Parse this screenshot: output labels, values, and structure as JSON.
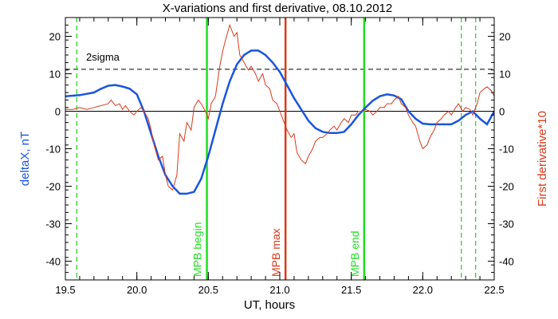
{
  "chart_data": {
    "type": "line",
    "title": "X-variations and first derivative, 08.10.2012",
    "xlabel": "UT, hours",
    "ylabel_left": "deltaX, nT",
    "ylabel_right": "First derivative*10",
    "xlim": [
      19.5,
      22.5
    ],
    "ylim": [
      -45,
      25
    ],
    "x_ticks": [
      19.5,
      20.0,
      20.5,
      21.0,
      21.5,
      22.0,
      22.5
    ],
    "x_tick_labels": [
      "19.5",
      "20.0",
      "20.5",
      "21.0",
      "21.5",
      "22.0",
      "22.5"
    ],
    "y_ticks": [
      20,
      10,
      0,
      -10,
      -20,
      -30,
      -40
    ],
    "y_tick_labels": [
      "20",
      "10",
      "0",
      "-10",
      "-20",
      "-30",
      "-40"
    ],
    "series": [
      {
        "name": "deltaX, nT",
        "color": "#1a55e0",
        "x": [
          19.5,
          19.6,
          19.7,
          19.75,
          19.8,
          19.85,
          19.9,
          19.95,
          20.0,
          20.05,
          20.1,
          20.15,
          20.2,
          20.25,
          20.3,
          20.35,
          20.4,
          20.45,
          20.5,
          20.55,
          20.6,
          20.65,
          20.7,
          20.75,
          20.8,
          20.85,
          20.9,
          20.95,
          21.0,
          21.05,
          21.1,
          21.15,
          21.2,
          21.25,
          21.3,
          21.35,
          21.4,
          21.45,
          21.5,
          21.55,
          21.6,
          21.65,
          21.7,
          21.75,
          21.8,
          21.85,
          21.9,
          21.95,
          22.0,
          22.05,
          22.1,
          22.15,
          22.2,
          22.25,
          22.3,
          22.35,
          22.4,
          22.45,
          22.5
        ],
        "values": [
          4,
          4.3,
          5,
          6,
          6.8,
          7,
          6.6,
          6,
          4.5,
          0,
          -6,
          -12,
          -17,
          -20,
          -22,
          -22,
          -21.5,
          -18,
          -12,
          -5,
          2,
          8,
          12.5,
          15,
          16.2,
          16.2,
          15,
          13,
          10.5,
          7,
          3.5,
          0.5,
          -2.5,
          -4.5,
          -5.5,
          -5.8,
          -5.8,
          -5.5,
          -3.5,
          -1,
          1,
          2.8,
          4,
          4.5,
          4.2,
          3.2,
          0,
          -2,
          -3.3,
          -3.5,
          -3.5,
          -3.5,
          -3.5,
          -2.5,
          -1,
          0,
          -2,
          -3.5,
          0
        ]
      },
      {
        "name": "First derivative*10",
        "color": "#d93a1a",
        "x": [
          19.5,
          19.55,
          19.6,
          19.65,
          19.7,
          19.75,
          19.8,
          19.82,
          19.85,
          19.88,
          19.9,
          19.92,
          19.95,
          19.98,
          20.0,
          20.03,
          20.05,
          20.08,
          20.1,
          20.12,
          20.15,
          20.18,
          20.2,
          20.22,
          20.25,
          20.28,
          20.3,
          20.33,
          20.35,
          20.38,
          20.4,
          20.43,
          20.45,
          20.48,
          20.5,
          20.52,
          20.55,
          20.58,
          20.6,
          20.62,
          20.65,
          20.68,
          20.7,
          20.72,
          20.75,
          20.78,
          20.8,
          20.83,
          20.85,
          20.88,
          20.9,
          20.93,
          20.95,
          20.98,
          21.0,
          21.03,
          21.05,
          21.08,
          21.1,
          21.12,
          21.15,
          21.18,
          21.2,
          21.23,
          21.25,
          21.28,
          21.3,
          21.33,
          21.35,
          21.38,
          21.4,
          21.43,
          21.45,
          21.48,
          21.5,
          21.53,
          21.55,
          21.58,
          21.6,
          21.63,
          21.65,
          21.68,
          21.7,
          21.73,
          21.75,
          21.78,
          21.8,
          21.83,
          21.85,
          21.88,
          21.9,
          21.93,
          21.95,
          21.98,
          22.0,
          22.03,
          22.05,
          22.08,
          22.1,
          22.13,
          22.15,
          22.18,
          22.2,
          22.23,
          22.25,
          22.28,
          22.3,
          22.33,
          22.35,
          22.38,
          22.4,
          22.43,
          22.45,
          22.48,
          22.5
        ],
        "values": [
          0.5,
          0.5,
          1,
          0.5,
          1,
          1.5,
          2,
          3,
          1.5,
          2,
          0.5,
          1.5,
          0,
          -1,
          0,
          1,
          0,
          -2,
          -5,
          -9,
          -13,
          -12,
          -17,
          -20,
          -21,
          -17,
          -6,
          -8,
          -3,
          -5,
          1,
          3,
          2,
          0,
          -2,
          2,
          4,
          12,
          16,
          19,
          23,
          20,
          21,
          15,
          13,
          11,
          12,
          10,
          8,
          10,
          7,
          6,
          3,
          2,
          0,
          -3,
          -5,
          -7,
          -6,
          -11,
          -13,
          -14,
          -12,
          -10,
          -8,
          -7,
          -7,
          -6,
          -5,
          -4,
          -5,
          -3,
          -2,
          -3,
          -1,
          -1,
          0,
          0,
          0.5,
          0,
          -1,
          0,
          1,
          1,
          2,
          2,
          3,
          4,
          2,
          1,
          -1,
          -3,
          -4,
          -8,
          -10,
          -9,
          -7,
          -5,
          -3,
          -2,
          -1,
          0,
          -1,
          1,
          2,
          0,
          1,
          0.5,
          -1,
          2,
          5,
          6,
          6.5,
          5.5,
          4
        ],
        "width": 1
      }
    ],
    "reference_lines": [
      {
        "name": "zero-line",
        "y": 0,
        "color": "#000000",
        "style": "solid"
      },
      {
        "name": "2sigma-line",
        "y": 11.2,
        "color": "#000000",
        "style": "dashed",
        "label": "2sigma"
      }
    ],
    "vertical_lines": [
      {
        "x": 19.58,
        "color": "#22cc22",
        "style": "dashed",
        "label": ""
      },
      {
        "x": 20.49,
        "color": "#22dd22",
        "style": "solid",
        "label": "MPB begin"
      },
      {
        "x": 21.04,
        "color": "#d93a1a",
        "style": "solid",
        "label": "MPB max"
      },
      {
        "x": 21.59,
        "color": "#22dd22",
        "style": "solid",
        "label": "MPB end"
      },
      {
        "x": 22.27,
        "color": "#22cc22",
        "style": "dashed",
        "label": ""
      },
      {
        "x": 22.37,
        "color": "#22cc22",
        "style": "dashed",
        "label": ""
      }
    ],
    "grid": false,
    "colors": {
      "background": "#ffffff",
      "axis": "#000000",
      "left_label": "#1a55e0",
      "right_label": "#d93a1a"
    }
  }
}
